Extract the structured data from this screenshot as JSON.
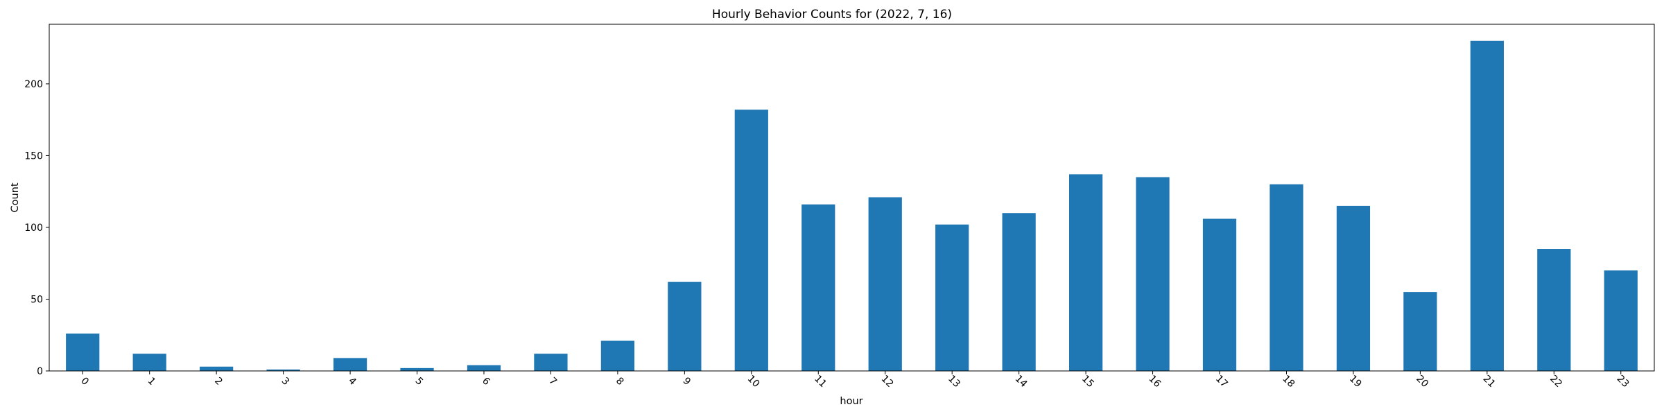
{
  "chart_data": {
    "type": "bar",
    "title": "Hourly Behavior Counts for (2022, 7, 16)",
    "xlabel": "hour",
    "ylabel": "Count",
    "categories": [
      "0",
      "1",
      "2",
      "3",
      "4",
      "5",
      "6",
      "7",
      "8",
      "9",
      "10",
      "11",
      "12",
      "13",
      "14",
      "15",
      "16",
      "17",
      "18",
      "19",
      "20",
      "21",
      "22",
      "23"
    ],
    "values": [
      26,
      12,
      3,
      1,
      9,
      2,
      4,
      12,
      21,
      62,
      182,
      116,
      121,
      102,
      110,
      137,
      135,
      106,
      130,
      115,
      55,
      230,
      85,
      70
    ],
    "ylim": [
      0,
      241.5
    ],
    "yticks": [
      0,
      50,
      100,
      150,
      200
    ],
    "grid": false,
    "legend": "none",
    "bar_color": "#1f77b4"
  }
}
